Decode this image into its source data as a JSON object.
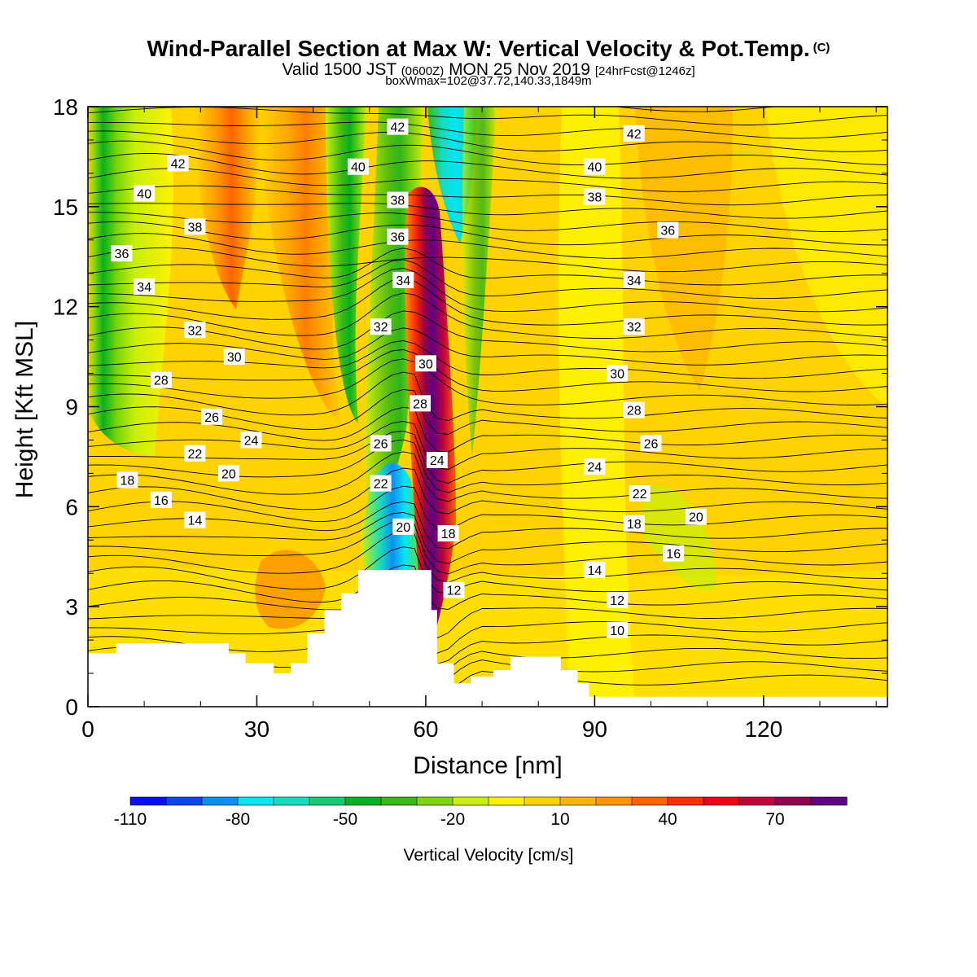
{
  "title": {
    "main": "Wind-Parallel Section at Max W: Vertical Velocity & Pot.Temp.",
    "copyright": "(C)",
    "line2_a": "Valid 1500 JST",
    "line2_b": "(0600Z)",
    "line2_c": "MON 25 Nov 2019",
    "line2_d": "[24hrFcst@1246z]",
    "line3": "boxWmax=102@37.72,140.33,1849m"
  },
  "chart_data": {
    "type": "heatmap",
    "xlabel": "Distance [nm]",
    "ylabel": "Height [Kft MSL]",
    "xlim": [
      0,
      142
    ],
    "ylim": [
      0,
      18
    ],
    "x_ticks": [
      0,
      30,
      60,
      90,
      120
    ],
    "y_ticks": [
      0,
      3,
      6,
      9,
      12,
      15,
      18
    ],
    "colorbar": {
      "label": "Vertical Velocity [cm/s]",
      "tick_labels": [
        "-110",
        "-80",
        "-50",
        "-20",
        "10",
        "40",
        "70"
      ],
      "colors": [
        "#0a0ff5",
        "#0b45f0",
        "#0d90f2",
        "#03e4f5",
        "#16dcbe",
        "#12cc74",
        "#09b01f",
        "#37b913",
        "#7fd60a",
        "#c8ef0a",
        "#fff200",
        "#ffd200",
        "#ffb400",
        "#ff9600",
        "#ff6400",
        "#ff2d00",
        "#ee0019",
        "#c2003a",
        "#8f004e",
        "#5f0085"
      ]
    },
    "terrain": [
      [
        0,
        1.6
      ],
      [
        5,
        1.9
      ],
      [
        18,
        1.9
      ],
      [
        25,
        1.6
      ],
      [
        28,
        1.3
      ],
      [
        33,
        1.0
      ],
      [
        36,
        1.3
      ],
      [
        39,
        2.2
      ],
      [
        42,
        2.9
      ],
      [
        45,
        3.4
      ],
      [
        48,
        4.1
      ],
      [
        58,
        4.1
      ],
      [
        61,
        2.9
      ],
      [
        62,
        1.3
      ],
      [
        65,
        0.7
      ],
      [
        68,
        0.9
      ],
      [
        72,
        1.1
      ],
      [
        75,
        1.5
      ],
      [
        80,
        1.5
      ],
      [
        84,
        1.1
      ],
      [
        87,
        0.7
      ],
      [
        89,
        0.3
      ],
      [
        142,
        0.3
      ]
    ],
    "isentrope_labels": [
      {
        "text": "42",
        "x": 16,
        "y": 16.3
      },
      {
        "text": "40",
        "x": 10,
        "y": 15.4
      },
      {
        "text": "38",
        "x": 19,
        "y": 14.4
      },
      {
        "text": "36",
        "x": 6,
        "y": 13.6
      },
      {
        "text": "34",
        "x": 10,
        "y": 12.6
      },
      {
        "text": "32",
        "x": 19,
        "y": 11.3
      },
      {
        "text": "30",
        "x": 26,
        "y": 10.5
      },
      {
        "text": "28",
        "x": 13,
        "y": 9.8
      },
      {
        "text": "26",
        "x": 22,
        "y": 8.7
      },
      {
        "text": "24",
        "x": 29,
        "y": 8.0
      },
      {
        "text": "22",
        "x": 19,
        "y": 7.6
      },
      {
        "text": "20",
        "x": 25,
        "y": 7.0
      },
      {
        "text": "18",
        "x": 7,
        "y": 6.8
      },
      {
        "text": "16",
        "x": 13,
        "y": 6.2
      },
      {
        "text": "14",
        "x": 19,
        "y": 5.6
      },
      {
        "text": "42",
        "x": 55,
        "y": 17.4
      },
      {
        "text": "40",
        "x": 48,
        "y": 16.2
      },
      {
        "text": "38",
        "x": 55,
        "y": 15.2
      },
      {
        "text": "36",
        "x": 55,
        "y": 14.1
      },
      {
        "text": "34",
        "x": 56,
        "y": 12.8
      },
      {
        "text": "32",
        "x": 52,
        "y": 11.4
      },
      {
        "text": "30",
        "x": 60,
        "y": 10.3
      },
      {
        "text": "28",
        "x": 59,
        "y": 9.1
      },
      {
        "text": "26",
        "x": 52,
        "y": 7.9
      },
      {
        "text": "24",
        "x": 62,
        "y": 7.4
      },
      {
        "text": "22",
        "x": 52,
        "y": 6.7
      },
      {
        "text": "20",
        "x": 56,
        "y": 5.4
      },
      {
        "text": "18",
        "x": 64,
        "y": 5.2
      },
      {
        "text": "12",
        "x": 65,
        "y": 3.5
      },
      {
        "text": "42",
        "x": 97,
        "y": 17.2
      },
      {
        "text": "40",
        "x": 90,
        "y": 16.2
      },
      {
        "text": "38",
        "x": 90,
        "y": 15.3
      },
      {
        "text": "36",
        "x": 103,
        "y": 14.3
      },
      {
        "text": "34",
        "x": 97,
        "y": 12.8
      },
      {
        "text": "32",
        "x": 97,
        "y": 11.4
      },
      {
        "text": "30",
        "x": 94,
        "y": 10.0
      },
      {
        "text": "28",
        "x": 97,
        "y": 8.9
      },
      {
        "text": "26",
        "x": 100,
        "y": 7.9
      },
      {
        "text": "24",
        "x": 90,
        "y": 7.2
      },
      {
        "text": "22",
        "x": 98,
        "y": 6.4
      },
      {
        "text": "20",
        "x": 108,
        "y": 5.7
      },
      {
        "text": "18",
        "x": 97,
        "y": 5.5
      },
      {
        "text": "16",
        "x": 104,
        "y": 4.6
      },
      {
        "text": "14",
        "x": 90,
        "y": 4.1
      },
      {
        "text": "12",
        "x": 94,
        "y": 3.2
      },
      {
        "text": "10",
        "x": 94,
        "y": 2.3
      }
    ]
  }
}
